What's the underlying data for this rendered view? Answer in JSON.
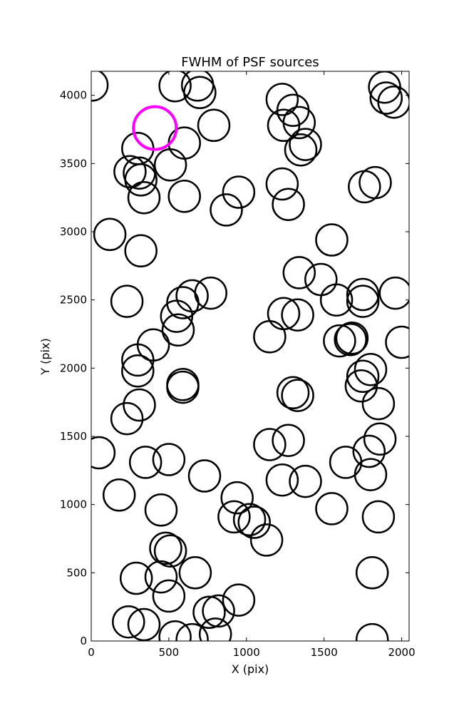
{
  "chart_data": {
    "type": "scatter",
    "title": "FWHM of PSF sources",
    "xlabel": "X (pix)",
    "ylabel": "Y (pix)",
    "xlim": [
      0,
      2048
    ],
    "ylim": [
      0,
      4176
    ],
    "xticks": [
      0,
      500,
      1000,
      1500,
      2000
    ],
    "yticks": [
      0,
      500,
      1000,
      1500,
      2000,
      2500,
      3000,
      3500,
      4000
    ],
    "xtick_labels": [
      "0",
      "500",
      "1000",
      "1500",
      "2000"
    ],
    "ytick_labels": [
      "0",
      "500",
      "1000",
      "1500",
      "2000",
      "2500",
      "3000",
      "3500",
      "4000"
    ],
    "grid": false,
    "legend": "none",
    "marker": "open circle",
    "series": [
      {
        "color": "#000000",
        "points": [
          [
            5,
            4075
          ],
          [
            540,
            4070
          ],
          [
            685,
            4075
          ],
          [
            700,
            4020
          ],
          [
            1890,
            4060
          ],
          [
            1900,
            3980
          ],
          [
            1950,
            3950
          ],
          [
            1230,
            3970
          ],
          [
            1300,
            3890
          ],
          [
            1240,
            3780
          ],
          [
            1340,
            3800
          ],
          [
            1380,
            3640
          ],
          [
            1350,
            3600
          ],
          [
            300,
            3610
          ],
          [
            600,
            3650
          ],
          [
            790,
            3780
          ],
          [
            250,
            3440
          ],
          [
            310,
            3430
          ],
          [
            320,
            3380
          ],
          [
            510,
            3490
          ],
          [
            340,
            3250
          ],
          [
            600,
            3260
          ],
          [
            950,
            3290
          ],
          [
            870,
            3160
          ],
          [
            1230,
            3350
          ],
          [
            1270,
            3200
          ],
          [
            1760,
            3330
          ],
          [
            1830,
            3360
          ],
          [
            120,
            2980
          ],
          [
            320,
            2860
          ],
          [
            1550,
            2940
          ],
          [
            1340,
            2700
          ],
          [
            1480,
            2650
          ],
          [
            230,
            2490
          ],
          [
            590,
            2480
          ],
          [
            650,
            2530
          ],
          [
            770,
            2550
          ],
          [
            550,
            2380
          ],
          [
            560,
            2280
          ],
          [
            1240,
            2400
          ],
          [
            1330,
            2390
          ],
          [
            1150,
            2230
          ],
          [
            1580,
            2500
          ],
          [
            1750,
            2540
          ],
          [
            1750,
            2490
          ],
          [
            1960,
            2550
          ],
          [
            2000,
            2190
          ],
          [
            1600,
            2200
          ],
          [
            1670,
            2210
          ],
          [
            1680,
            2220
          ],
          [
            400,
            2170
          ],
          [
            300,
            2060
          ],
          [
            300,
            1980
          ],
          [
            590,
            1880
          ],
          [
            590,
            1860
          ],
          [
            1300,
            1820
          ],
          [
            1330,
            1800
          ],
          [
            1750,
            1940
          ],
          [
            1800,
            1990
          ],
          [
            1740,
            1870
          ],
          [
            1850,
            1740
          ],
          [
            310,
            1730
          ],
          [
            230,
            1630
          ],
          [
            50,
            1380
          ],
          [
            350,
            1310
          ],
          [
            500,
            1330
          ],
          [
            730,
            1210
          ],
          [
            1150,
            1440
          ],
          [
            1270,
            1470
          ],
          [
            1230,
            1180
          ],
          [
            1380,
            1170
          ],
          [
            1640,
            1310
          ],
          [
            1790,
            1390
          ],
          [
            1800,
            1220
          ],
          [
            1860,
            1480
          ],
          [
            180,
            1070
          ],
          [
            450,
            960
          ],
          [
            940,
            1050
          ],
          [
            920,
            910
          ],
          [
            1020,
            890
          ],
          [
            1050,
            870
          ],
          [
            1130,
            740
          ],
          [
            1550,
            970
          ],
          [
            1850,
            910
          ],
          [
            480,
            680
          ],
          [
            510,
            660
          ],
          [
            290,
            460
          ],
          [
            450,
            470
          ],
          [
            500,
            330
          ],
          [
            670,
            500
          ],
          [
            950,
            300
          ],
          [
            760,
            210
          ],
          [
            820,
            220
          ],
          [
            240,
            140
          ],
          [
            340,
            120
          ],
          [
            540,
            30
          ],
          [
            650,
            10
          ],
          [
            800,
            50
          ],
          [
            1810,
            500
          ],
          [
            1810,
            10
          ]
        ]
      },
      {
        "color": "#ff00ff",
        "points": [
          [
            410,
            3760
          ]
        ]
      }
    ]
  }
}
